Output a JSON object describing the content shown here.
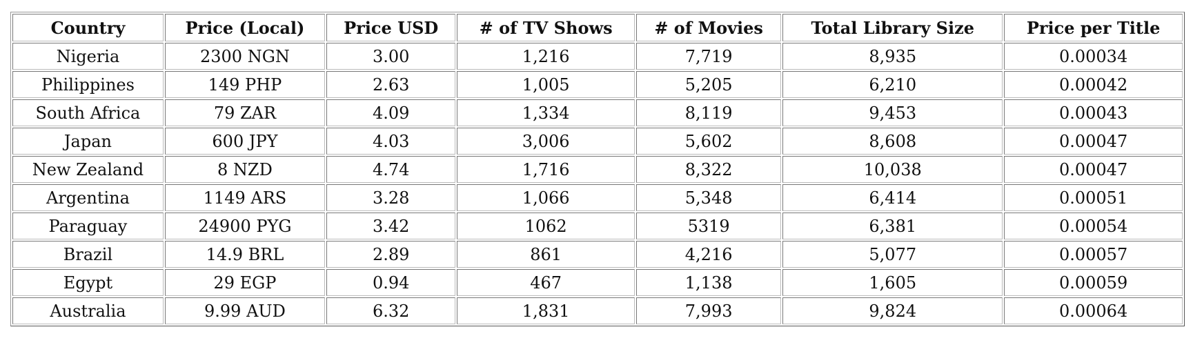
{
  "table": {
    "columns": [
      "Country",
      "Price (Local)",
      "Price USD",
      "# of TV Shows",
      "# of Movies",
      "Total Library Size",
      "Price per Title"
    ],
    "rows": [
      [
        "Nigeria",
        "2300 NGN",
        "3.00",
        "1,216",
        "7,719",
        "8,935",
        "0.00034"
      ],
      [
        "Philippines",
        "149 PHP",
        "2.63",
        "1,005",
        "5,205",
        "6,210",
        "0.00042"
      ],
      [
        "South Africa",
        "79 ZAR",
        "4.09",
        "1,334",
        "8,119",
        "9,453",
        "0.00043"
      ],
      [
        "Japan",
        "600 JPY",
        "4.03",
        "3,006",
        "5,602",
        "8,608",
        "0.00047"
      ],
      [
        "New Zealand",
        "8 NZD",
        "4.74",
        "1,716",
        "8,322",
        "10,038",
        "0.00047"
      ],
      [
        "Argentina",
        "1149 ARS",
        "3.28",
        "1,066",
        "5,348",
        "6,414",
        "0.00051"
      ],
      [
        "Paraguay",
        "24900 PYG",
        "3.42",
        "1062",
        "5319",
        "6,381",
        "0.00054"
      ],
      [
        "Brazil",
        "14.9 BRL",
        "2.89",
        "861",
        "4,216",
        "5,077",
        "0.00057"
      ],
      [
        "Egypt",
        "29 EGP",
        "0.94",
        "467",
        "1,138",
        "1,605",
        "0.00059"
      ],
      [
        "Australia",
        "9.99 AUD",
        "6.32",
        "1,831",
        "7,993",
        "9,824",
        "0.00064"
      ]
    ]
  }
}
